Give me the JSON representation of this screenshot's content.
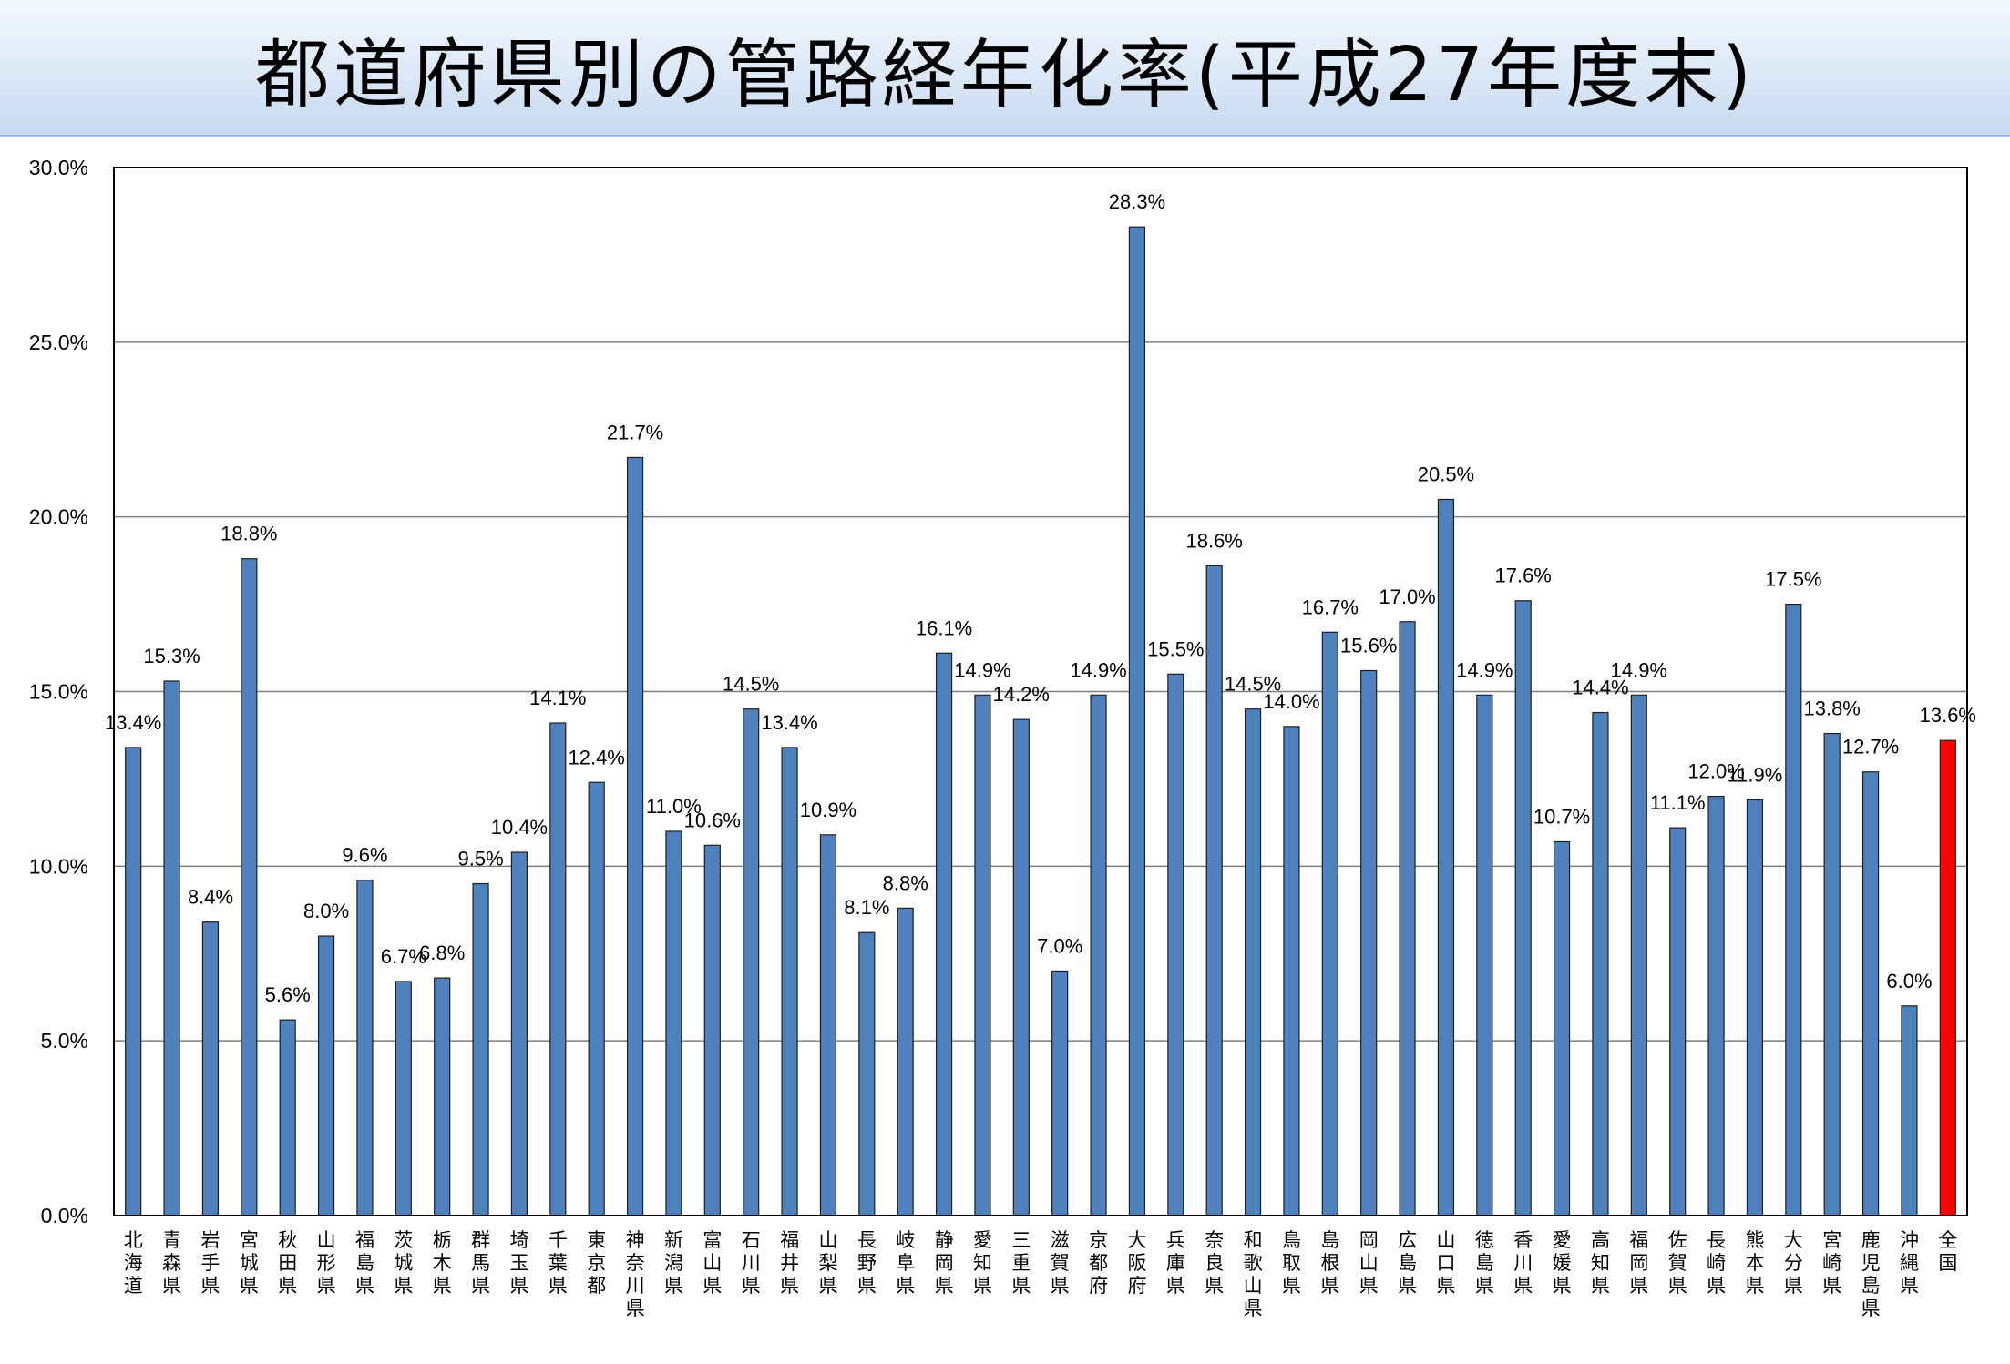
{
  "title": "都道府県別の管路経年化率(平成27年度末)",
  "chart_data": {
    "type": "bar",
    "title": "都道府県別の管路経年化率(平成27年度末)",
    "xlabel": "",
    "ylabel": "",
    "ylim": [
      0,
      30
    ],
    "yticks": [
      "0.0%",
      "5.0%",
      "10.0%",
      "15.0%",
      "20.0%",
      "25.0%",
      "30.0%"
    ],
    "grid": true,
    "colors": {
      "bar": "#4f81bd",
      "bar_border": "#1f1f1f",
      "highlight": "#ff0000",
      "grid": "#7f7f7f"
    },
    "highlight_index": 47,
    "categories": [
      "北海道",
      "青森県",
      "岩手県",
      "宮城県",
      "秋田県",
      "山形県",
      "福島県",
      "茨城県",
      "栃木県",
      "群馬県",
      "埼玉県",
      "千葉県",
      "東京都",
      "神奈川県",
      "新潟県",
      "富山県",
      "石川県",
      "福井県",
      "山梨県",
      "長野県",
      "岐阜県",
      "静岡県",
      "愛知県",
      "三重県",
      "滋賀県",
      "京都府",
      "大阪府",
      "兵庫県",
      "奈良県",
      "和歌山県",
      "鳥取県",
      "島根県",
      "岡山県",
      "広島県",
      "山口県",
      "徳島県",
      "香川県",
      "愛媛県",
      "高知県",
      "福岡県",
      "佐賀県",
      "長崎県",
      "熊本県",
      "大分県",
      "宮崎県",
      "鹿児島県",
      "沖縄県",
      "全国"
    ],
    "values": [
      13.4,
      15.3,
      8.4,
      18.8,
      5.6,
      8.0,
      9.6,
      6.7,
      6.8,
      9.5,
      10.4,
      14.1,
      12.4,
      21.7,
      11.0,
      10.6,
      14.5,
      13.4,
      10.9,
      8.1,
      8.8,
      16.1,
      14.9,
      14.2,
      7.0,
      14.9,
      28.3,
      15.5,
      18.6,
      14.5,
      14.0,
      16.7,
      15.6,
      17.0,
      20.5,
      14.9,
      17.6,
      10.7,
      14.4,
      14.9,
      11.1,
      12.0,
      11.9,
      17.5,
      13.8,
      12.7,
      6.0,
      13.6
    ],
    "data_labels": [
      "13.4%",
      "15.3%",
      "8.4%",
      "18.8%",
      "5.6%",
      "8.0%",
      "9.6%",
      "6.7%",
      "6.8%",
      "9.5%",
      "10.4%",
      "14.1%",
      "12.4%",
      "21.7%",
      "11.0%",
      "10.6%",
      "14.5%",
      "13.4%",
      "10.9%",
      "8.1%",
      "8.8%",
      "16.1%",
      "14.9%",
      "14.2%",
      "7.0%",
      "14.9%",
      "28.3%",
      "15.5%",
      "18.6%",
      "14.5%",
      "14.0%",
      "16.7%",
      "15.6%",
      "17.0%",
      "20.5%",
      "14.9%",
      "17.6%",
      "10.7%",
      "14.4%",
      "14.9%",
      "11.1%",
      "12.0%",
      "11.9%",
      "17.5%",
      "13.8%",
      "12.7%",
      "6.0%",
      "13.6%"
    ]
  }
}
